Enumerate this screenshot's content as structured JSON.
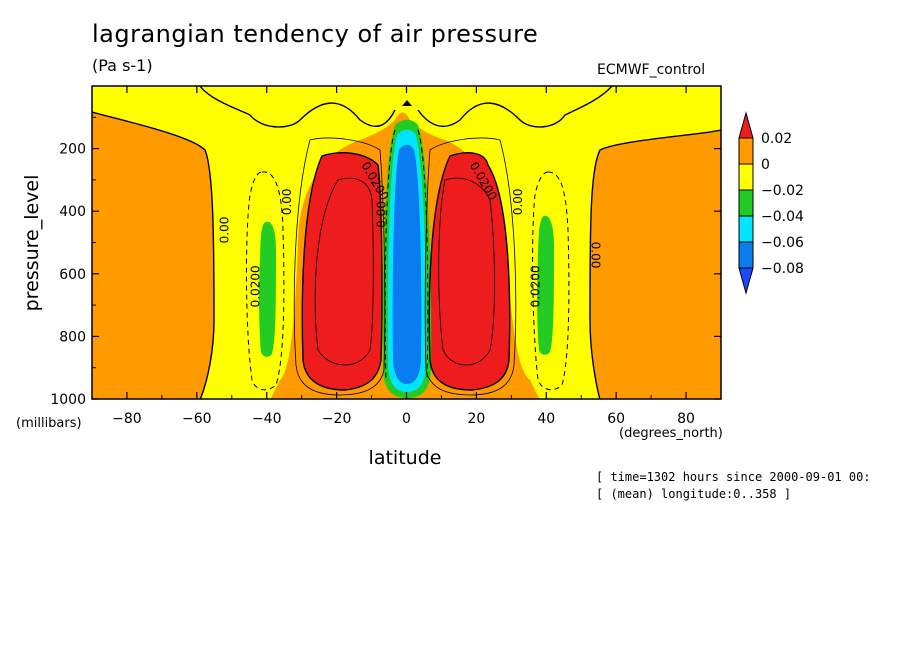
{
  "title": "lagrangian tendency of air pressure",
  "units": "(Pa s-1)",
  "dataset": "ECMWF_control",
  "meta": {
    "time_line": "[ time=1302 hours since 2000-09-01 00:",
    "longitude_line": "[ (mean) longitude:0..358 ]"
  },
  "chart_data": {
    "type": "contour",
    "xlabel": "latitude",
    "xunits": "(degrees_north)",
    "ylabel": "pressure_level",
    "yunits": "(millibars)",
    "xlim": [
      -90,
      90
    ],
    "ylim": [
      1000,
      0
    ],
    "x_ticks": [
      -80,
      -60,
      -40,
      -20,
      0,
      20,
      40,
      60,
      80
    ],
    "y_ticks": [
      200,
      400,
      600,
      800,
      1000
    ],
    "x_tick_labels": [
      "−80",
      "−60",
      "−40",
      "−20",
      "0",
      "20",
      "40",
      "60",
      "80"
    ],
    "y_tick_labels": [
      "200",
      "400",
      "600",
      "800",
      "1000"
    ],
    "colorbar": {
      "levels": [
        "0.02",
        "0",
        "−0.02",
        "−0.04",
        "−0.06",
        "−0.08"
      ],
      "colors": [
        "#ee1c1c",
        "#ff9b00",
        "#ffff00",
        "#22cc22",
        "#00e5ff",
        "#0a7cf0",
        "#1a4cff"
      ],
      "extend": "both"
    },
    "contour_labels": [
      {
        "text": "0.00",
        "lat": -51,
        "p": 460,
        "rot": -90
      },
      {
        "text": "0.00",
        "lat": -33,
        "p": 370,
        "rot": -90
      },
      {
        "text": "0.0200",
        "lat": -42,
        "p": 640,
        "rot": -90
      },
      {
        "text": "0.0200",
        "lat": -10,
        "p": 310,
        "rot": 60
      },
      {
        "text": "0.00",
        "lat": -6,
        "p": 410,
        "rot": -90
      },
      {
        "text": "0.0200",
        "lat": 21,
        "p": 310,
        "rot": 60
      },
      {
        "text": "0.00",
        "lat": 33,
        "p": 370,
        "rot": -90
      },
      {
        "text": "0.0200",
        "lat": 38,
        "p": 640,
        "rot": -90
      },
      {
        "text": "0.00",
        "lat": 53,
        "p": 540,
        "rot": 90
      }
    ],
    "regions": {
      "positive_cells_lat": [
        [
          -28,
          -8
        ],
        [
          9,
          29
        ]
      ],
      "positive_cells_p": [
        230,
        910
      ],
      "equatorial_negative_lat": [
        -5,
        5
      ],
      "equatorial_negative_p": [
        130,
        980
      ],
      "midlat_negative_lat": [
        [
          -42,
          -38
        ],
        [
          38,
          42
        ]
      ],
      "midlat_negative_p": [
        430,
        860
      ]
    }
  }
}
